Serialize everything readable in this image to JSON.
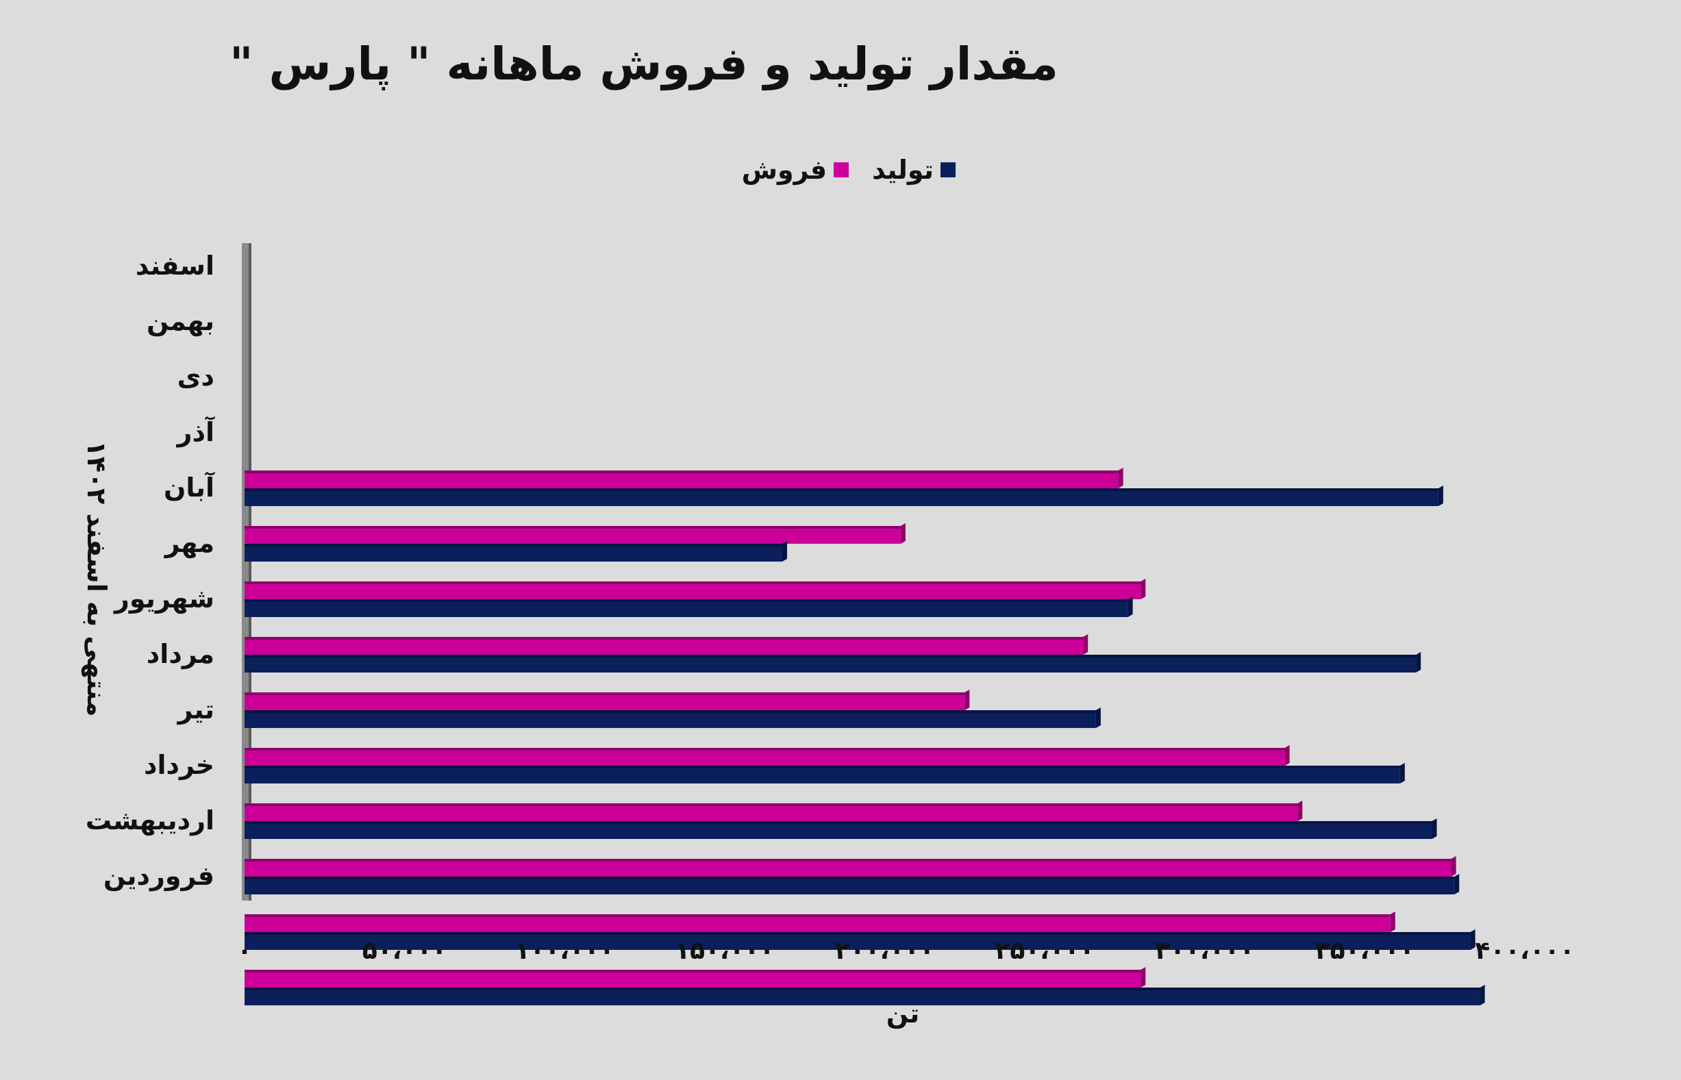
{
  "chart_data": {
    "type": "bar",
    "orientation": "horizontal",
    "title": "مقدار تولید و فروش ماهانه \" پارس \"",
    "xlabel": "تن",
    "ylabel": "منتهی به اسفند ۱۴۰۲",
    "xlim": [
      0,
      400000
    ],
    "x_ticks": [
      "۰",
      "۵۰،۰۰۰",
      "۱۰۰،۰۰۰",
      "۱۵۰،۰۰۰",
      "۲۰۰،۰۰۰",
      "۲۵۰،۰۰۰",
      "۳۰۰،۰۰۰",
      "۳۵۰،۰۰۰",
      "۴۰۰،۰۰۰"
    ],
    "x_tick_values": [
      0,
      50000,
      100000,
      150000,
      200000,
      250000,
      300000,
      350000,
      400000
    ],
    "categories": [
      "اسفند",
      "بهمن",
      "دی",
      "آذر",
      "آبان",
      "مهر",
      "شهریور",
      "مرداد",
      "تیر",
      "خرداد",
      "اردیبهشت",
      "فروردین"
    ],
    "series": [
      {
        "name": "فروش",
        "color": "#cc0099",
        "values": [
          0,
          0,
          273000,
          205000,
          280000,
          262000,
          225000,
          325000,
          329000,
          377000,
          358000,
          280000
        ]
      },
      {
        "name": "تولید",
        "color": "#0a1f5c",
        "values": [
          0,
          0,
          373000,
          168000,
          276000,
          366000,
          266000,
          361000,
          371000,
          378000,
          383000,
          386000
        ]
      }
    ],
    "legend_position": "top-center",
    "grid": false
  }
}
